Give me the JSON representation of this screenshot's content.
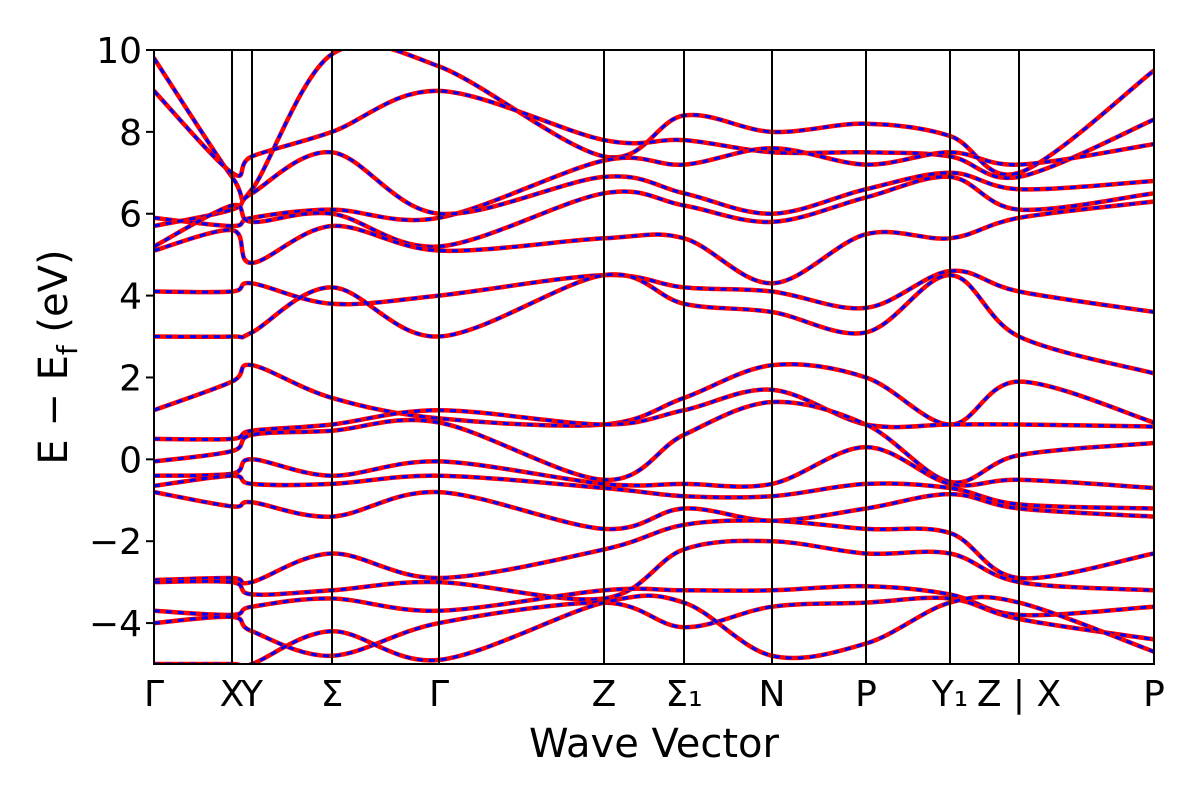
{
  "chart_data": {
    "type": "line",
    "title": "",
    "xlabel": "Wave Vector",
    "ylabel": "E − E_f (eV)",
    "ylabel_main": "E − E",
    "ylabel_sub": "f",
    "ylabel_unit": " (eV)",
    "ylim": [
      -5,
      10
    ],
    "yticks": [
      -4,
      -2,
      0,
      2,
      4,
      6,
      8,
      10
    ],
    "ytick_labels": [
      "−4",
      "−2",
      "0",
      "2",
      "4",
      "6",
      "8",
      "10"
    ],
    "xlim": [
      0,
      10
    ],
    "kpoints": [
      {
        "pos": 0.0,
        "label": "Γ"
      },
      {
        "pos": 0.78,
        "label": "X"
      },
      {
        "pos": 0.98,
        "label": "Y"
      },
      {
        "pos": 1.78,
        "label": "Σ"
      },
      {
        "pos": 2.85,
        "label": "Γ"
      },
      {
        "pos": 4.5,
        "label": "Z"
      },
      {
        "pos": 5.3,
        "label": "Σ₁"
      },
      {
        "pos": 6.18,
        "label": "N"
      },
      {
        "pos": 7.12,
        "label": "P"
      },
      {
        "pos": 7.96,
        "label": "Y₁"
      },
      {
        "pos": 8.65,
        "label": "Z | X"
      },
      {
        "pos": 10.0,
        "label": "P"
      }
    ],
    "series": [
      {
        "color": "#ff0000",
        "style": "solid",
        "x": [
          0,
          0.78,
          0.98,
          1.78,
          2.85,
          4.5,
          5.3,
          6.18,
          7.12,
          7.96,
          8.65,
          10
        ],
        "y": [
          9.8,
          6.9,
          6.6,
          9.9,
          9.6,
          7.4,
          8.4,
          8.0,
          8.2,
          7.9,
          7.0,
          9.5
        ]
      },
      {
        "color": "#ff0000",
        "style": "solid",
        "x": [
          0,
          0.78,
          0.98,
          1.78,
          2.85,
          4.5,
          5.3,
          6.18,
          7.12,
          7.96,
          8.65,
          10
        ],
        "y": [
          9.0,
          7.0,
          7.4,
          8.0,
          9.0,
          7.8,
          7.8,
          7.5,
          7.5,
          7.4,
          6.9,
          8.3
        ]
      },
      {
        "color": "#ff0000",
        "style": "solid",
        "x": [
          0,
          0.78,
          0.98,
          1.78,
          2.85,
          4.5,
          5.3,
          6.18,
          7.12,
          7.96,
          8.65,
          10
        ],
        "y": [
          5.9,
          5.7,
          5.9,
          6.1,
          5.9,
          7.3,
          7.2,
          7.6,
          7.2,
          7.5,
          7.2,
          7.7
        ]
      },
      {
        "color": "#ff0000",
        "style": "solid",
        "x": [
          0,
          0.78,
          0.98,
          1.78,
          2.85,
          4.5,
          5.3,
          6.18,
          7.12,
          7.96,
          8.65,
          10
        ],
        "y": [
          5.7,
          6.1,
          6.5,
          7.5,
          6.0,
          6.9,
          6.5,
          6.0,
          6.6,
          7.0,
          6.6,
          6.8
        ]
      },
      {
        "color": "#ff0000",
        "style": "solid",
        "x": [
          0,
          0.78,
          0.98,
          1.78,
          2.85,
          4.5,
          5.3,
          6.18,
          7.12,
          7.96,
          8.65,
          10
        ],
        "y": [
          5.2,
          6.2,
          5.8,
          6.0,
          5.2,
          6.5,
          6.2,
          5.8,
          6.4,
          6.9,
          6.1,
          6.5
        ]
      },
      {
        "color": "#ff0000",
        "style": "solid",
        "x": [
          0,
          0.78,
          0.98,
          1.78,
          2.85,
          4.5,
          5.3,
          6.18,
          7.12,
          7.96,
          8.65,
          10
        ],
        "y": [
          5.1,
          5.6,
          4.8,
          5.7,
          5.1,
          5.4,
          5.4,
          4.3,
          5.5,
          5.4,
          5.9,
          6.3
        ]
      },
      {
        "color": "#ff0000",
        "style": "solid",
        "x": [
          0,
          0.78,
          0.98,
          1.78,
          2.85,
          4.5,
          5.3,
          6.18,
          7.12,
          7.96,
          8.65,
          10
        ],
        "y": [
          4.1,
          4.1,
          4.3,
          3.8,
          4.0,
          4.5,
          4.2,
          4.1,
          3.7,
          4.6,
          4.1,
          3.6
        ]
      },
      {
        "color": "#ff0000",
        "style": "solid",
        "x": [
          0,
          0.78,
          0.98,
          1.78,
          2.85,
          4.5,
          5.3,
          6.18,
          7.12,
          7.96,
          8.65,
          10
        ],
        "y": [
          3.0,
          3.0,
          3.1,
          4.2,
          3.0,
          4.5,
          3.8,
          3.6,
          3.1,
          4.5,
          3.0,
          2.1
        ]
      },
      {
        "color": "#ff0000",
        "style": "solid",
        "x": [
          0,
          0.78,
          0.98,
          1.78,
          2.85,
          4.5,
          5.3,
          6.18,
          7.12,
          7.96,
          8.65,
          10
        ],
        "y": [
          1.2,
          1.9,
          2.3,
          1.5,
          1.0,
          0.85,
          1.5,
          2.3,
          2.0,
          0.85,
          1.9,
          0.9
        ]
      },
      {
        "color": "#ff0000",
        "style": "solid",
        "x": [
          0,
          0.78,
          0.98,
          1.78,
          2.85,
          4.5,
          5.3,
          6.18,
          7.12,
          7.96,
          8.65,
          10
        ],
        "y": [
          0.5,
          0.5,
          0.7,
          0.85,
          1.2,
          0.85,
          1.2,
          1.7,
          0.85,
          0.85,
          0.85,
          0.8
        ]
      },
      {
        "color": "#ff0000",
        "style": "solid",
        "x": [
          0,
          0.78,
          0.98,
          1.78,
          2.85,
          4.5,
          5.3,
          6.18,
          7.12,
          7.96,
          8.65,
          10
        ],
        "y": [
          -0.05,
          0.2,
          0.6,
          0.7,
          0.9,
          -0.5,
          0.6,
          1.4,
          0.85,
          -0.55,
          0.1,
          0.4
        ]
      },
      {
        "color": "#ff0000",
        "style": "solid",
        "x": [
          0,
          0.78,
          0.98,
          1.78,
          2.85,
          4.5,
          5.3,
          6.18,
          7.12,
          7.96,
          8.65,
          10
        ],
        "y": [
          -0.4,
          -0.35,
          0.0,
          -0.4,
          -0.05,
          -0.6,
          -0.6,
          -0.6,
          0.3,
          -0.6,
          -0.5,
          -0.7
        ]
      },
      {
        "color": "#ff0000",
        "style": "solid",
        "x": [
          0,
          0.78,
          0.98,
          1.78,
          2.85,
          4.5,
          5.3,
          6.18,
          7.12,
          7.96,
          8.65,
          10
        ],
        "y": [
          -0.65,
          -0.4,
          -0.6,
          -0.6,
          -0.4,
          -0.7,
          -0.9,
          -0.9,
          -0.6,
          -0.7,
          -1.1,
          -1.2
        ]
      },
      {
        "color": "#ff0000",
        "style": "solid",
        "x": [
          0,
          0.78,
          0.98,
          1.78,
          2.85,
          4.5,
          5.3,
          6.18,
          7.12,
          7.96,
          8.65,
          10
        ],
        "y": [
          -0.8,
          -1.15,
          -1.05,
          -1.4,
          -0.8,
          -1.7,
          -1.2,
          -1.5,
          -1.2,
          -0.85,
          -1.2,
          -1.4
        ]
      },
      {
        "color": "#ff0000",
        "style": "solid",
        "x": [
          0,
          0.78,
          0.98,
          1.78,
          2.85,
          4.5,
          5.3,
          6.18,
          7.12,
          7.96,
          8.65,
          10
        ],
        "y": [
          -2.95,
          -2.9,
          -3.0,
          -2.3,
          -2.9,
          -2.2,
          -1.6,
          -1.5,
          -1.7,
          -1.8,
          -2.9,
          -2.3
        ]
      },
      {
        "color": "#ff0000",
        "style": "solid",
        "x": [
          0,
          0.78,
          0.98,
          1.78,
          2.85,
          4.5,
          5.3,
          6.18,
          7.12,
          7.96,
          8.65,
          10
        ],
        "y": [
          -3.0,
          -3.0,
          -3.3,
          -3.2,
          -3.0,
          -3.4,
          -2.2,
          -2.0,
          -2.3,
          -2.3,
          -3.0,
          -3.2
        ]
      },
      {
        "color": "#ff0000",
        "style": "solid",
        "x": [
          0,
          0.78,
          0.98,
          1.78,
          2.85,
          4.5,
          5.3,
          6.18,
          7.12,
          7.96,
          8.65,
          10
        ],
        "y": [
          -3.7,
          -3.8,
          -3.6,
          -3.4,
          -3.7,
          -3.2,
          -3.2,
          -3.2,
          -3.1,
          -3.3,
          -3.8,
          -3.6
        ]
      },
      {
        "color": "#ff0000",
        "style": "solid",
        "x": [
          0,
          0.78,
          0.98,
          1.78,
          2.85,
          4.5,
          5.3,
          6.18,
          7.12,
          7.96,
          8.65,
          10
        ],
        "y": [
          -4.0,
          -3.85,
          -4.2,
          -4.8,
          -4.0,
          -3.5,
          -4.1,
          -3.6,
          -3.5,
          -3.4,
          -3.9,
          -4.4
        ]
      },
      {
        "color": "#ff0000",
        "style": "solid",
        "x": [
          0,
          0.78,
          0.98,
          1.78,
          2.85,
          4.5,
          5.3,
          6.18,
          7.12,
          7.96,
          8.65,
          10
        ],
        "y": [
          -5.0,
          -5.0,
          -5.0,
          -4.2,
          -4.9,
          -3.5,
          -3.5,
          -4.8,
          -4.5,
          -3.5,
          -3.5,
          -4.7
        ]
      }
    ]
  }
}
